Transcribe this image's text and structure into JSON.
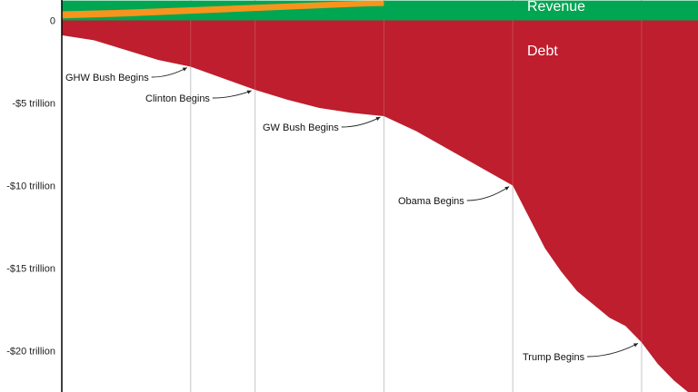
{
  "chart_data": {
    "type": "area",
    "title": "",
    "xlabel": "",
    "ylabel": "",
    "ylim": [
      -23,
      2.4
    ],
    "xlim": [
      1981,
      2020.5
    ],
    "y_ticks": [
      {
        "value": 0,
        "label": "0"
      },
      {
        "value": -5,
        "label": "-$5 trillion"
      },
      {
        "value": -10,
        "label": "-$10 trillion"
      },
      {
        "value": -15,
        "label": "-$15 trillion"
      },
      {
        "value": -20,
        "label": "-$20 trillion"
      }
    ],
    "gridlines_x": [
      1989,
      1993,
      2001,
      2009,
      2017
    ],
    "grid": true,
    "colors": {
      "revenue": "#00a651",
      "spending": "#f7941d",
      "debt": "#be1e2d",
      "gridline": "#bdbdbd",
      "axis": "#000000"
    },
    "series": [
      {
        "name": "Revenue",
        "color": "#00a651",
        "x": [
          1981,
          2020.5
        ],
        "y": [
          1.2,
          1.2
        ]
      },
      {
        "name": "",
        "color": "#f7941d",
        "x": [
          1981,
          1985,
          1989,
          1993,
          1997,
          2000,
          2001
        ],
        "y": [
          0.55,
          0.65,
          0.8,
          0.95,
          1.1,
          1.2,
          1.2
        ]
      },
      {
        "name": "Debt",
        "color": "#be1e2d",
        "x": [
          1981,
          1983,
          1985,
          1987,
          1989,
          1991,
          1993,
          1995,
          1997,
          1999,
          2001,
          2003,
          2005,
          2007,
          2009,
          2010,
          2011,
          2012,
          2013,
          2014,
          2015,
          2016,
          2017,
          2018,
          2019,
          2020.5
        ],
        "y": [
          -0.9,
          -1.2,
          -1.8,
          -2.4,
          -2.8,
          -3.5,
          -4.2,
          -4.8,
          -5.3,
          -5.6,
          -5.8,
          -6.7,
          -7.8,
          -8.9,
          -10.0,
          -11.9,
          -13.8,
          -15.2,
          -16.4,
          -17.2,
          -18.0,
          -18.5,
          -19.5,
          -20.8,
          -21.8,
          -23.0
        ]
      }
    ],
    "annotations": [
      {
        "text": "GHW Bush Begins",
        "x": 1989,
        "y": -2.8
      },
      {
        "text": "Clinton Begins",
        "x": 1993,
        "y": -4.2
      },
      {
        "text": "GW Bush Begins",
        "x": 2001,
        "y": -5.8
      },
      {
        "text": "Obama Begins",
        "x": 2009,
        "y": -10.0
      },
      {
        "text": "Trump Begins",
        "x": 2017,
        "y": -19.5
      }
    ]
  }
}
